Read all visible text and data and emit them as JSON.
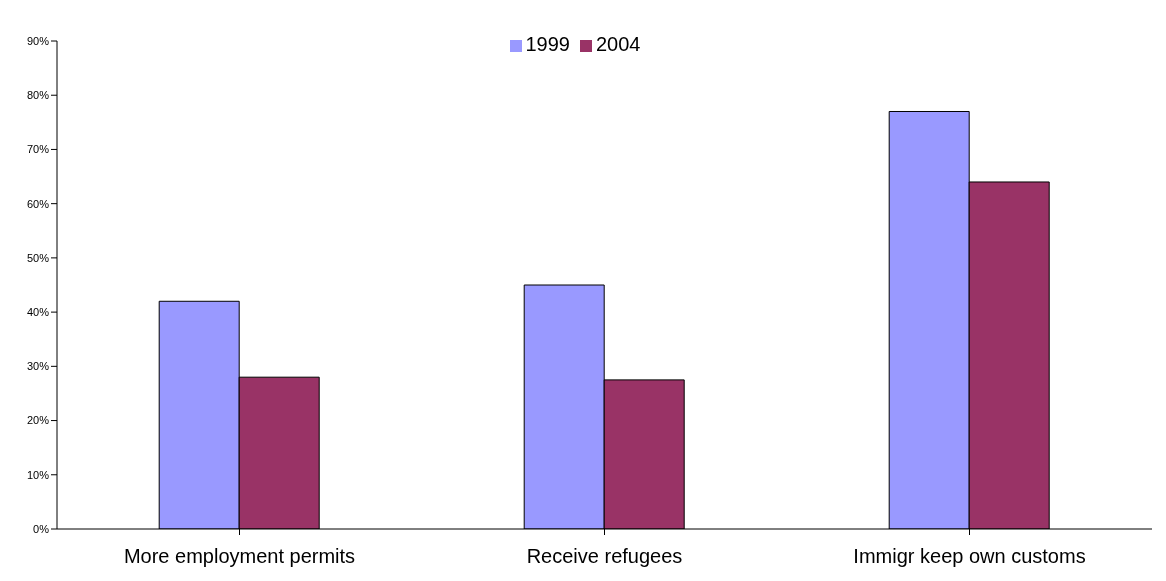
{
  "chart_data": {
    "type": "bar",
    "categories": [
      "More employment permits",
      "Receive refugees",
      "Immigr keep own customs"
    ],
    "series": [
      {
        "name": "1999",
        "color": "#9999ff",
        "values": [
          42,
          45,
          77
        ]
      },
      {
        "name": "2004",
        "color": "#993366",
        "values": [
          28,
          27.5,
          64
        ]
      }
    ],
    "ylim": [
      0,
      90
    ],
    "yticks": [
      {
        "value": 0,
        "label": "0%"
      },
      {
        "value": 10,
        "label": "10%"
      },
      {
        "value": 20,
        "label": "20%"
      },
      {
        "value": 30,
        "label": "30%"
      },
      {
        "value": 40,
        "label": "40%"
      },
      {
        "value": 50,
        "label": "50%"
      },
      {
        "value": 60,
        "label": "60%"
      },
      {
        "value": 70,
        "label": "70%"
      },
      {
        "value": 80,
        "label": "80%"
      },
      {
        "value": 90,
        "label": "90%"
      }
    ],
    "grid": false,
    "legend": "top"
  }
}
